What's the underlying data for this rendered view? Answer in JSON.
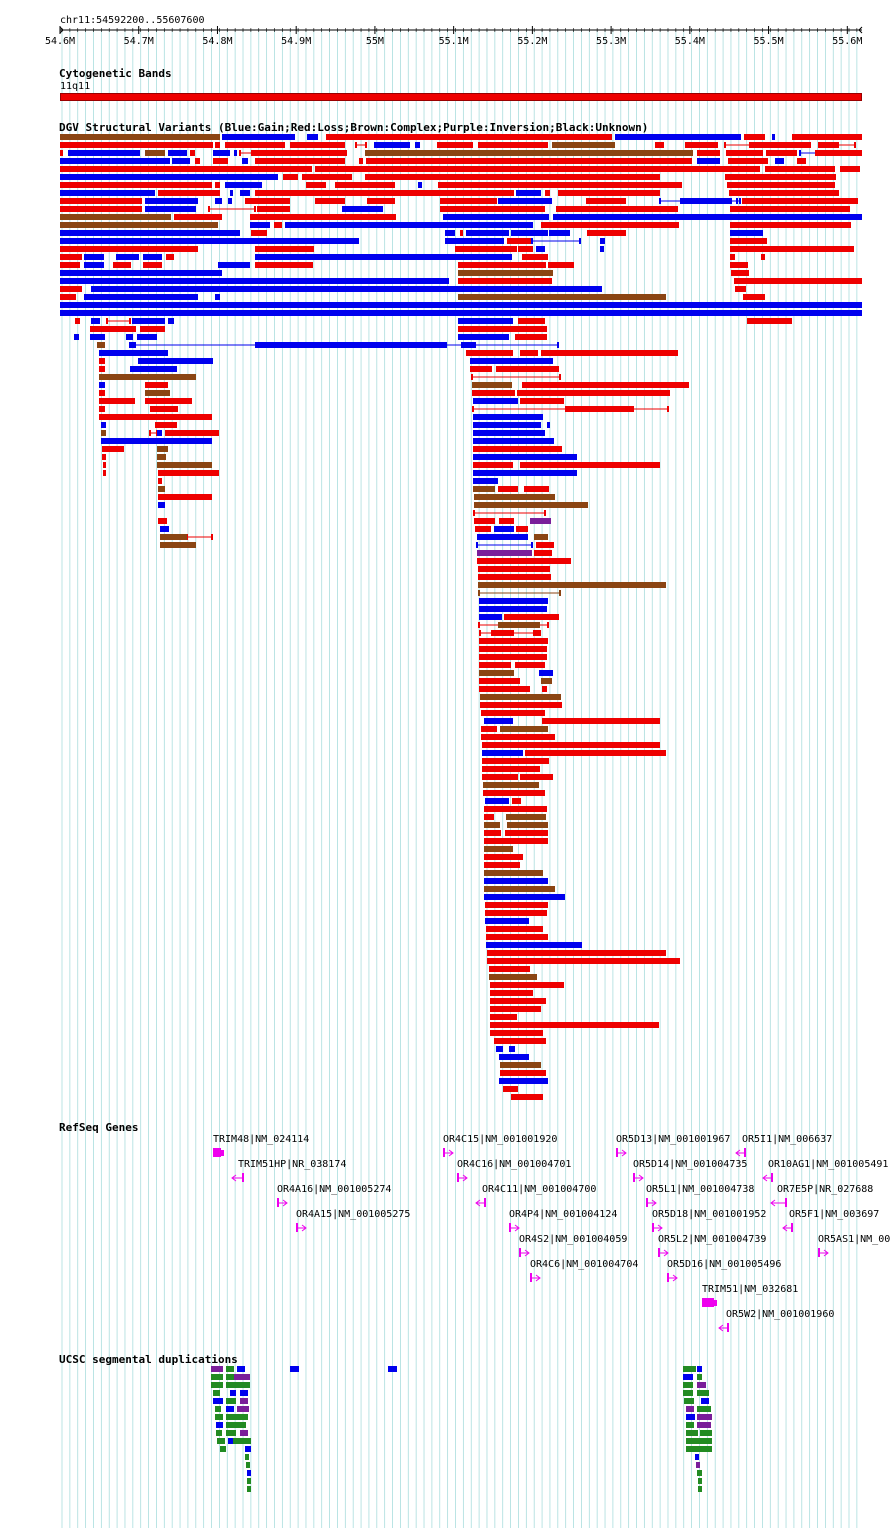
{
  "region_label": "chr11:54592200..55607600",
  "ruler": {
    "ticks": [
      {
        "label": "54.6M",
        "pos": 54.6
      },
      {
        "label": "54.7M",
        "pos": 54.7
      },
      {
        "label": "54.8M",
        "pos": 54.8
      },
      {
        "label": "54.9M",
        "pos": 54.9
      },
      {
        "label": "55M",
        "pos": 55.0
      },
      {
        "label": "55.1M",
        "pos": 55.1
      },
      {
        "label": "55.2M",
        "pos": 55.2
      },
      {
        "label": "55.3M",
        "pos": 55.3
      },
      {
        "label": "55.4M",
        "pos": 55.4
      },
      {
        "label": "55.5M",
        "pos": 55.5
      },
      {
        "label": "55.6M",
        "pos": 55.6
      }
    ]
  },
  "tracks": {
    "cytoband": {
      "title": "Cytogenetic Bands",
      "band_label": "11q11",
      "color": "#ee0000"
    },
    "dgv": {
      "title": "DGV Structural Variants (Blue:Gain;Red:Loss;Brown:Complex;Purple:Inversion;Black:Unknown)",
      "colors": {
        "gain": "#0000ee",
        "loss": "#ee0000",
        "complex": "#8b4513",
        "inversion": "#7a1e9a",
        "unknown": "#000000"
      }
    },
    "refseq": {
      "title": "RefSeq Genes",
      "color": "#ee00ee",
      "genes": [
        {
          "label": "TRIM48|NM_024114",
          "strand": "block"
        },
        {
          "label": "TRIM51HP|NR_038174",
          "strand": "-"
        },
        {
          "label": "OR4A16|NM_001005274",
          "strand": "+"
        },
        {
          "label": "OR4A15|NM_001005275",
          "strand": "+"
        },
        {
          "label": "OR4C15|NM_001001920",
          "strand": "+"
        },
        {
          "label": "OR4C16|NM_001004701",
          "strand": "+"
        },
        {
          "label": "OR4C11|NM_001004700",
          "strand": "-"
        },
        {
          "label": "OR4P4|NM_001004124",
          "strand": "+"
        },
        {
          "label": "OR4S2|NM_001004059",
          "strand": "+"
        },
        {
          "label": "OR4C6|NM_001004704",
          "strand": "+"
        },
        {
          "label": "OR5D13|NM_001001967",
          "strand": "+"
        },
        {
          "label": "OR5D14|NM_001004735",
          "strand": "+"
        },
        {
          "label": "OR5L1|NM_001004738",
          "strand": "+"
        },
        {
          "label": "OR5D18|NM_001001952",
          "strand": "+"
        },
        {
          "label": "OR5L2|NM_001004739",
          "strand": "+"
        },
        {
          "label": "OR5D16|NM_001005496",
          "strand": "+"
        },
        {
          "label": "TRIM51|NM_032681",
          "strand": "block"
        },
        {
          "label": "OR5W2|NM_001001960",
          "strand": "-"
        },
        {
          "label": "OR5I1|NM_006637",
          "strand": "-"
        },
        {
          "label": "OR10AG1|NM_001005491",
          "strand": "-"
        },
        {
          "label": "OR7E5P|NR_027688",
          "strand": "-"
        },
        {
          "label": "OR5F1|NM_003697",
          "strand": "-"
        },
        {
          "label": "OR5AS1|NM_00",
          "strand": "+"
        }
      ]
    },
    "segdup": {
      "title": "UCSC segmental duplications",
      "colors": {
        "green": "#228b22",
        "blue": "#0000ee",
        "purple": "#7a1e9a"
      }
    }
  }
}
